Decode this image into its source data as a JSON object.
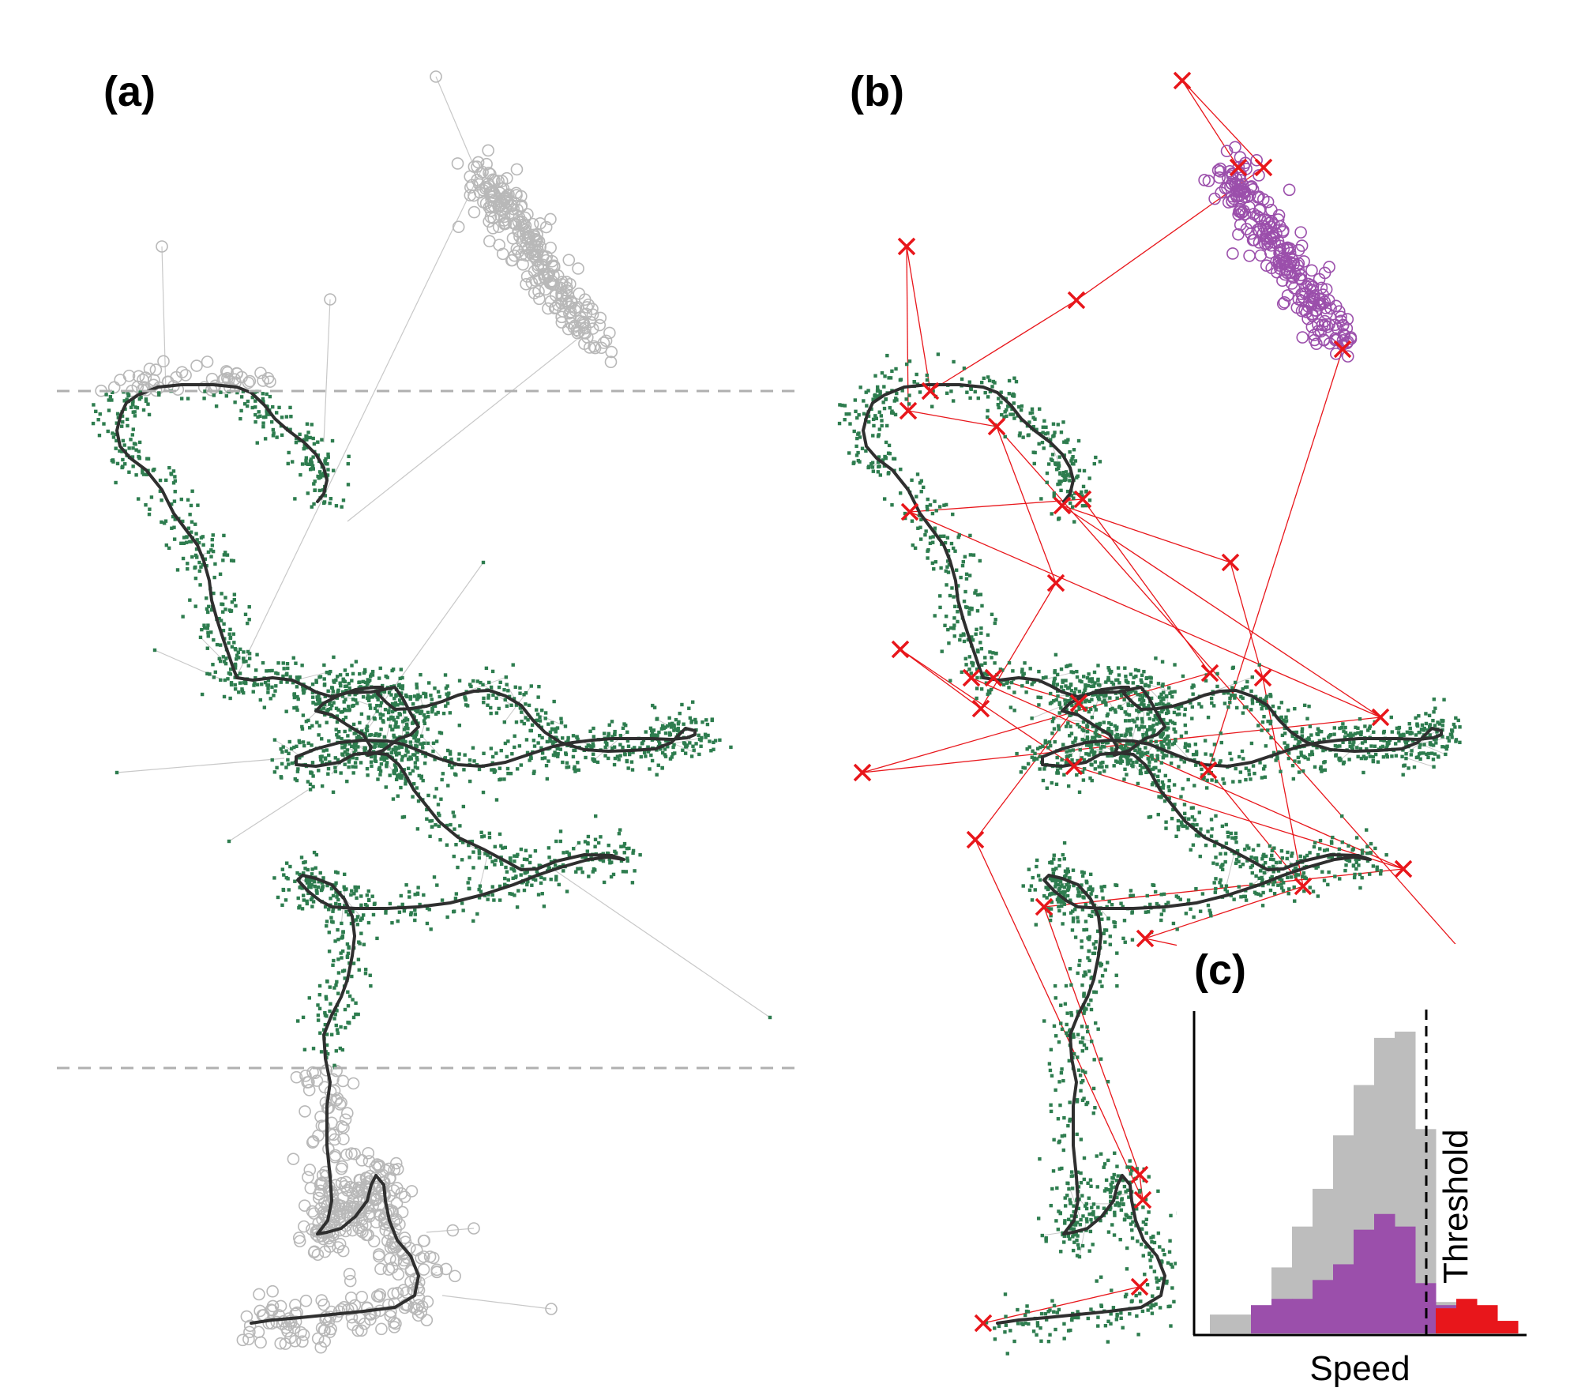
{
  "figure": {
    "panels": [
      {
        "id": "a",
        "label": "(a)"
      },
      {
        "id": "b",
        "label": "(b)"
      },
      {
        "id": "c",
        "label": "(c)"
      }
    ],
    "colors": {
      "background": "#ffffff",
      "excluded_points": "#b8b8b8",
      "retained_points": "#2e7d4f",
      "track_line": "#2f2f2f",
      "cutoff_line": "#b0b0b0",
      "flagged_cross": "#e8161b",
      "cluster_points": "#9b4fab",
      "connector_gray": "#c8c8c8",
      "connector_red": "#e8161b"
    }
  },
  "chart_data": [
    {
      "panel": "(a)",
      "type": "scatter",
      "title": "(a)",
      "xlabel": "",
      "ylabel": "",
      "axes_shown": false,
      "grid": false,
      "marker_legend": {
        "gray_open_circles": "points outside the horizontal cutoff band",
        "green_dots": "points inside the cutoff band",
        "dark_line": "smoothed track",
        "dashed_lines": "two horizontal cutoffs"
      }
    },
    {
      "panel": "(b)",
      "type": "scatter",
      "title": "(b)",
      "xlabel": "",
      "ylabel": "",
      "axes_shown": false,
      "grid": false,
      "marker_legend": {
        "red_crosses": "flagged fixes",
        "purple_open_circles": "isolated cluster",
        "green_dots": "retained fixes",
        "dark_line": "smoothed track"
      }
    },
    {
      "panel": "(c)",
      "type": "bar",
      "title": "(c)",
      "xlabel": "Speed",
      "ylabel": "",
      "threshold_label": "Threshold",
      "threshold_bin": 10,
      "ylim": [
        0,
        100
      ],
      "bins": 15,
      "series": [
        {
          "key": "all",
          "color": "#bdbdbd",
          "values": [
            6,
            6,
            6,
            21,
            34,
            46,
            63,
            79,
            94,
            96,
            65,
            10,
            10,
            8,
            3
          ]
        },
        {
          "key": "cluster",
          "color": "#9b4fab",
          "values": [
            0,
            0,
            9,
            11,
            11,
            17,
            22,
            33,
            38,
            34,
            16,
            9,
            5,
            5,
            3
          ]
        },
        {
          "key": "flagged",
          "color": "#e8161b",
          "values": [
            0,
            0,
            0,
            0,
            0,
            0,
            0,
            0,
            0,
            0,
            0,
            8,
            11,
            9,
            4
          ]
        }
      ],
      "axes": {
        "left": true,
        "bottom": true,
        "ticks": false
      }
    }
  ]
}
